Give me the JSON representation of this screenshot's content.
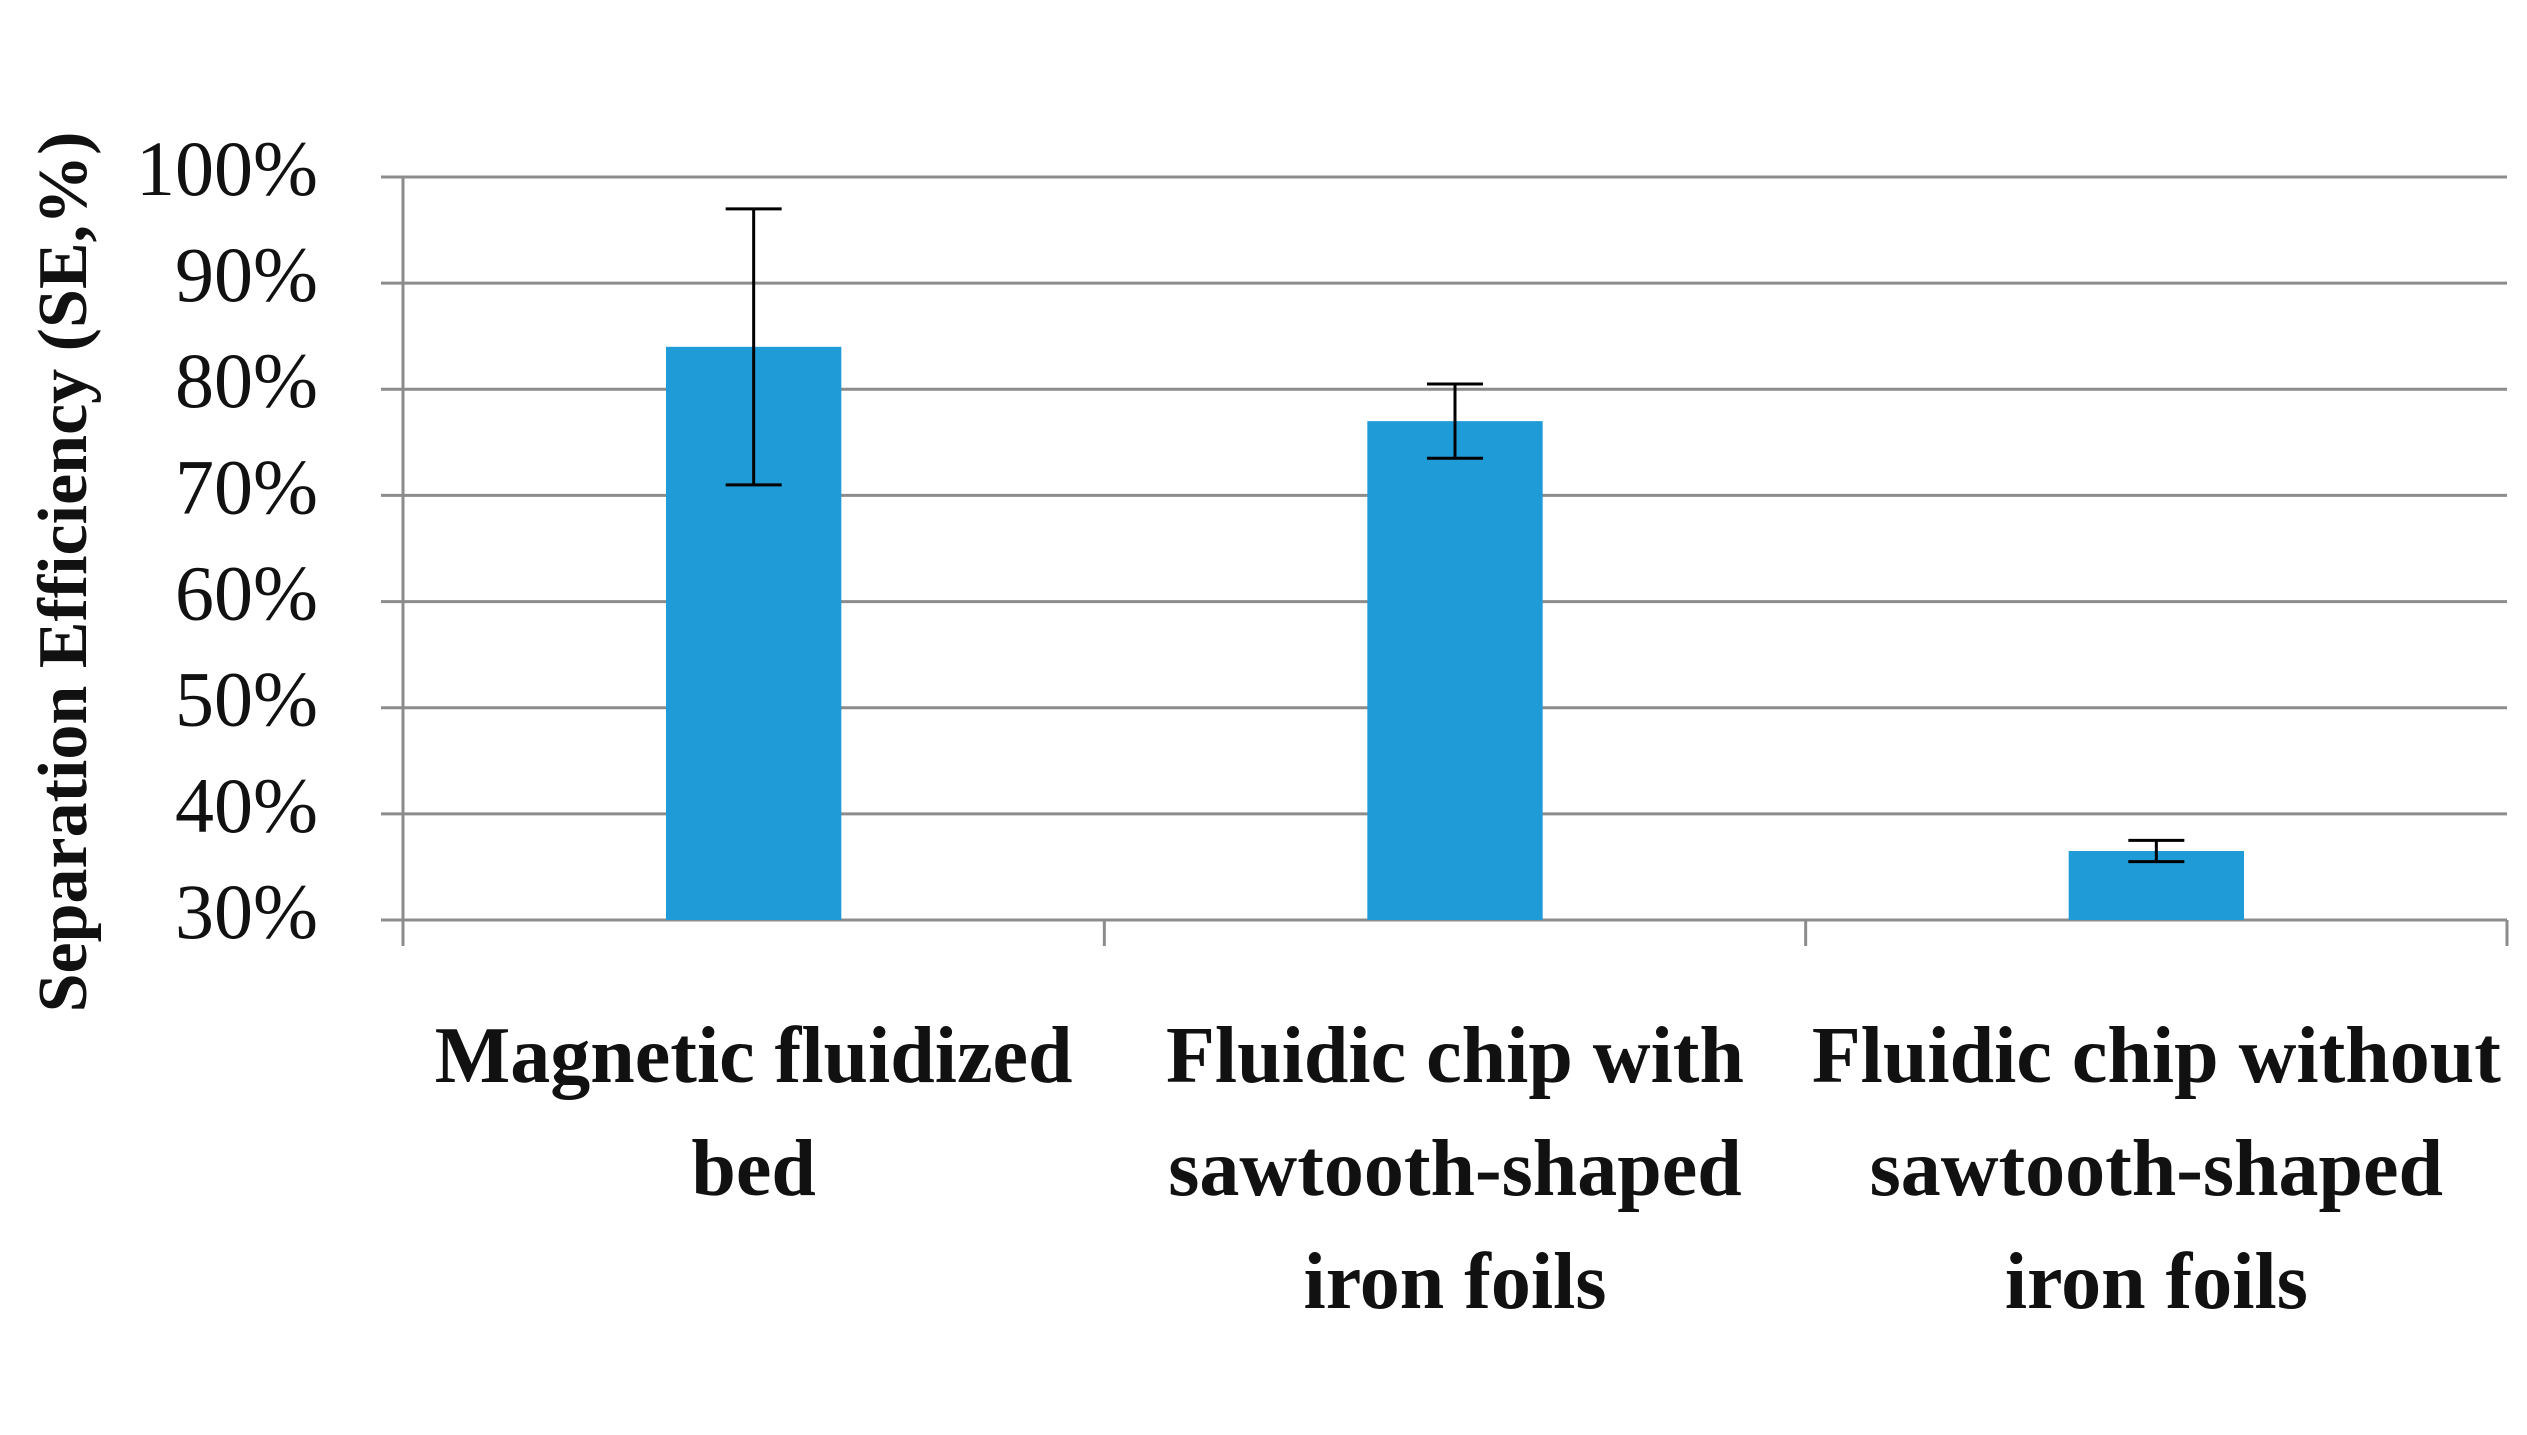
{
  "chart_data": {
    "type": "bar",
    "y_label": "Separation Efficiency (SE,%)",
    "categories": [
      "Magnetic fluidized bed",
      "Fluidic chip with sawtooth-shaped iron foils",
      "Fluidic chip without sawtooth-shaped iron foils"
    ],
    "values": [
      84,
      77,
      36.5
    ],
    "errors": [
      13,
      3.5,
      1
    ],
    "color": "#1f9bd7",
    "ylim": [
      30,
      100
    ],
    "yticks": [
      {
        "value": 30,
        "label": "30%"
      },
      {
        "value": 40,
        "label": "40%"
      },
      {
        "value": 50,
        "label": "50%"
      },
      {
        "value": 60,
        "label": "60%"
      },
      {
        "value": 70,
        "label": "70%"
      },
      {
        "value": 80,
        "label": "80%"
      },
      {
        "value": 90,
        "label": "90%"
      },
      {
        "value": 100,
        "label": "100%"
      }
    ],
    "grid": true
  }
}
